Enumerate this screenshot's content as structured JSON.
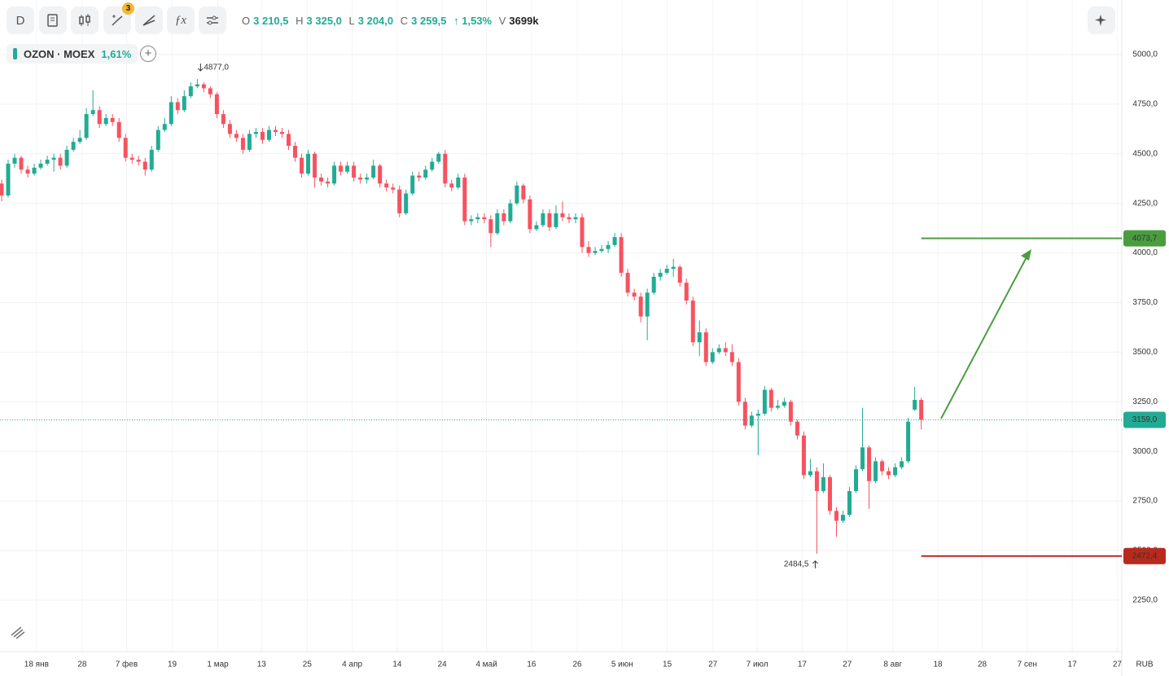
{
  "toolbar": {
    "interval": "D",
    "badge": "3"
  },
  "quote": {
    "o": "O",
    "open": "3 210,5",
    "h": "H",
    "high": "3 325,0",
    "l": "L",
    "low": "3 204,0",
    "c": "C",
    "close": "3 259,5",
    "change": "↑ 1,53%",
    "v": "V",
    "volume": "3699k"
  },
  "legend": {
    "symbol": "OZON · MOEX",
    "change": "1,61%"
  },
  "chart_data": {
    "type": "candlestick",
    "up_color": "#22ab94",
    "down_color": "#f7525f",
    "xlim": [
      0,
      172
    ],
    "ylim": [
      1991,
      5275
    ],
    "currency": "RUB",
    "xticks": [
      {
        "value": 5.6,
        "label": "18 янв"
      },
      {
        "value": 12.6,
        "label": "28"
      },
      {
        "value": 19.4,
        "label": "7 фев"
      },
      {
        "value": 26.4,
        "label": "19"
      },
      {
        "value": 33.4,
        "label": "1 мар"
      },
      {
        "value": 40.1,
        "label": "13"
      },
      {
        "value": 47.1,
        "label": "25"
      },
      {
        "value": 54,
        "label": "4 апр"
      },
      {
        "value": 60.9,
        "label": "14"
      },
      {
        "value": 67.8,
        "label": "24"
      },
      {
        "value": 74.6,
        "label": "4 май"
      },
      {
        "value": 81.5,
        "label": "16"
      },
      {
        "value": 88.5,
        "label": "26"
      },
      {
        "value": 95.4,
        "label": "5 июн"
      },
      {
        "value": 102.3,
        "label": "15"
      },
      {
        "value": 109.3,
        "label": "27"
      },
      {
        "value": 116.1,
        "label": "7 июл"
      },
      {
        "value": 123,
        "label": "17"
      },
      {
        "value": 129.9,
        "label": "27"
      },
      {
        "value": 136.9,
        "label": "8 авг"
      },
      {
        "value": 143.8,
        "label": "18"
      },
      {
        "value": 150.6,
        "label": "28"
      },
      {
        "value": 157.5,
        "label": "7 сен"
      },
      {
        "value": 164.4,
        "label": "17"
      },
      {
        "value": 171.3,
        "label": "27"
      }
    ],
    "yticks": [
      {
        "value": 5000,
        "label": "5000,0"
      },
      {
        "value": 4750,
        "label": "4750,0"
      },
      {
        "value": 4500,
        "label": "4500,0"
      },
      {
        "value": 4250,
        "label": "4250,0"
      },
      {
        "value": 4000,
        "label": "4000,0"
      },
      {
        "value": 3750,
        "label": "3750,0"
      },
      {
        "value": 3500,
        "label": "3500,0"
      },
      {
        "value": 3250,
        "label": "3250,0"
      },
      {
        "value": 3000,
        "label": "3000,0"
      },
      {
        "value": 2750,
        "label": "2750,0"
      },
      {
        "value": 2500,
        "label": "2500,0"
      },
      {
        "value": 2250,
        "label": "2250,0"
      }
    ],
    "grid": true,
    "open": [
      4350,
      4290,
      4450,
      4480,
      4420,
      4400,
      4430,
      4450,
      4470,
      4480,
      4440,
      4520,
      4560,
      4580,
      4700,
      4720,
      4650,
      4680,
      4660,
      4580,
      4480,
      4470,
      4460,
      4420,
      4520,
      4620,
      4650,
      4760,
      4720,
      4790,
      4840,
      4850,
      4830,
      4800,
      4700,
      4650,
      4600,
      4580,
      4520,
      4600,
      4610,
      4570,
      4620,
      4610,
      4600,
      4540,
      4480,
      4400,
      4500,
      4380,
      4360,
      4350,
      4440,
      4410,
      4440,
      4380,
      4370,
      4380,
      4440,
      4350,
      4330,
      4320,
      4200,
      4300,
      4390,
      4380,
      4420,
      4460,
      4500,
      4350,
      4330,
      4380,
      4160,
      4170,
      4180,
      4170,
      4100,
      4200,
      4160,
      4250,
      4340,
      4270,
      4120,
      4140,
      4200,
      4130,
      4200,
      4180,
      4170,
      4180,
      4030,
      4000,
      4010,
      4020,
      4040,
      4080,
      3900,
      3800,
      3780,
      3680,
      3800,
      3880,
      3900,
      3920,
      3930,
      3850,
      3760,
      3550,
      3600,
      3450,
      3500,
      3520,
      3500,
      3450,
      3250,
      3130,
      3180,
      3190,
      3310,
      3220,
      3230,
      3250,
      3150,
      3080,
      2880,
      2900,
      2800,
      2870,
      2700,
      2650,
      2680,
      2800,
      2910,
      3020,
      2850,
      2950,
      2900,
      2880,
      2920,
      2950,
      3210.5,
      3259.5
    ],
    "high": [
      4370,
      4470,
      4500,
      4490,
      4440,
      4450,
      4470,
      4490,
      4500,
      4500,
      4540,
      4580,
      4620,
      4730,
      4820,
      4740,
      4700,
      4700,
      4680,
      4600,
      4500,
      4490,
      4480,
      4540,
      4640,
      4680,
      4790,
      4780,
      4820,
      4860,
      4877,
      4860,
      4840,
      4810,
      4720,
      4670,
      4620,
      4600,
      4620,
      4630,
      4630,
      4640,
      4640,
      4630,
      4620,
      4560,
      4500,
      4520,
      4510,
      4400,
      4380,
      4460,
      4460,
      4460,
      4460,
      4400,
      4400,
      4470,
      4450,
      4370,
      4350,
      4340,
      4320,
      4410,
      4410,
      4440,
      4480,
      4510,
      4520,
      4370,
      4400,
      4400,
      4190,
      4200,
      4200,
      4190,
      4220,
      4220,
      4270,
      4360,
      4350,
      4290,
      4160,
      4220,
      4220,
      4240,
      4260,
      4200,
      4200,
      4200,
      4060,
      4030,
      4040,
      4060,
      4100,
      4100,
      3920,
      3820,
      3800,
      3820,
      3900,
      3920,
      3940,
      3970,
      3940,
      3870,
      3780,
      3660,
      3620,
      3520,
      3540,
      3550,
      3540,
      3470,
      3270,
      3200,
      3210,
      3330,
      3320,
      3260,
      3270,
      3260,
      3160,
      3100,
      2960,
      2920,
      2940,
      2880,
      2720,
      2700,
      2820,
      2930,
      3220,
      3030,
      2970,
      2960,
      2920,
      2940,
      2970,
      3170,
      3325,
      3270
    ],
    "low": [
      4260,
      4280,
      4430,
      4400,
      4380,
      4390,
      4420,
      4440,
      4410,
      4420,
      4430,
      4510,
      4550,
      4570,
      4690,
      4630,
      4640,
      4640,
      4560,
      4460,
      4450,
      4440,
      4390,
      4410,
      4510,
      4610,
      4640,
      4700,
      4710,
      4780,
      4830,
      4810,
      4780,
      4680,
      4630,
      4580,
      4560,
      4500,
      4510,
      4580,
      4550,
      4560,
      4590,
      4580,
      4520,
      4460,
      4380,
      4390,
      4330,
      4340,
      4330,
      4340,
      4390,
      4400,
      4360,
      4350,
      4350,
      4370,
      4330,
      4310,
      4300,
      4180,
      4190,
      4290,
      4360,
      4370,
      4410,
      4450,
      4330,
      4310,
      4320,
      4140,
      4140,
      4150,
      4150,
      4030,
      4090,
      4140,
      4150,
      4240,
      4250,
      4100,
      4110,
      4130,
      4110,
      4120,
      4160,
      4150,
      4150,
      4000,
      3980,
      3990,
      4000,
      4000,
      4030,
      3880,
      3780,
      3760,
      3650,
      3560,
      3790,
      3860,
      3890,
      3880,
      3830,
      3740,
      3530,
      3480,
      3430,
      3440,
      3490,
      3480,
      3430,
      3230,
      3110,
      3120,
      2980,
      3180,
      3200,
      3210,
      3220,
      3130,
      3060,
      2860,
      2870,
      2484.5,
      2790,
      2680,
      2570,
      2640,
      2670,
      2790,
      2900,
      2710,
      2840,
      2880,
      2860,
      2870,
      2910,
      2940,
      3204,
      3110
    ],
    "close": [
      4290,
      4450,
      4480,
      4420,
      4400,
      4430,
      4450,
      4470,
      4480,
      4440,
      4520,
      4560,
      4580,
      4700,
      4720,
      4650,
      4680,
      4660,
      4580,
      4480,
      4470,
      4460,
      4420,
      4520,
      4620,
      4650,
      4760,
      4720,
      4790,
      4840,
      4850,
      4830,
      4800,
      4700,
      4650,
      4600,
      4580,
      4520,
      4600,
      4610,
      4570,
      4620,
      4610,
      4600,
      4540,
      4480,
      4400,
      4500,
      4380,
      4360,
      4350,
      4440,
      4410,
      4440,
      4380,
      4370,
      4380,
      4440,
      4350,
      4330,
      4320,
      4200,
      4300,
      4390,
      4380,
      4420,
      4460,
      4500,
      4350,
      4330,
      4380,
      4160,
      4170,
      4180,
      4170,
      4100,
      4200,
      4160,
      4250,
      4340,
      4270,
      4120,
      4140,
      4200,
      4130,
      4200,
      4180,
      4170,
      4180,
      4030,
      4000,
      4010,
      4020,
      4040,
      4080,
      3900,
      3800,
      3780,
      3680,
      3800,
      3880,
      3900,
      3920,
      3930,
      3850,
      3760,
      3550,
      3600,
      3450,
      3500,
      3520,
      3500,
      3450,
      3250,
      3130,
      3180,
      3190,
      3310,
      3220,
      3230,
      3250,
      3150,
      3080,
      2880,
      2900,
      2800,
      2870,
      2700,
      2650,
      2680,
      2800,
      2910,
      3020,
      2850,
      2950,
      2900,
      2880,
      2920,
      2950,
      3150,
      3259.5,
      3159
    ],
    "high_marker": {
      "index": 30,
      "value": 4877,
      "label": "4877,0"
    },
    "low_marker": {
      "index": 125,
      "value": 2484.5,
      "label": "2484,5"
    },
    "levels": [
      {
        "value": 4073.7,
        "label": "4073,7",
        "color": "#4a9d3f",
        "start": 141
      },
      {
        "value": 2472.4,
        "label": "2472,4",
        "color": "#b8291e",
        "start": 141
      }
    ],
    "last_price": {
      "value": 3159,
      "label": "3159,0",
      "color": "#22ab94"
    }
  }
}
